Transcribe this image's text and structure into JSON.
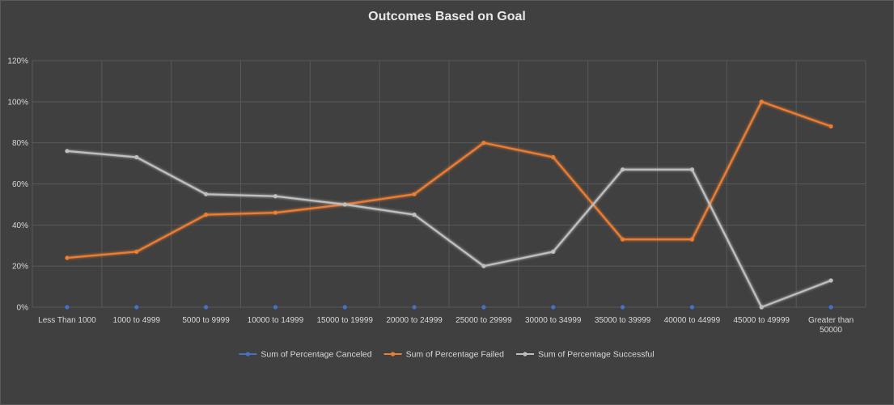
{
  "chart_data": {
    "type": "line",
    "title": "Outcomes Based on Goal",
    "xlabel": "",
    "ylabel": "",
    "categories": [
      "Less Than 1000",
      "1000 to 4999",
      "5000 to 9999",
      "10000 to 14999",
      "15000 to 19999",
      "20000 to 24999",
      "25000 to 29999",
      "30000 to 34999",
      "35000 to 39999",
      "40000 to 44999",
      "45000 to 49999",
      "Greater than 50000"
    ],
    "ylim": [
      0,
      120
    ],
    "yticks": [
      "0%",
      "20%",
      "40%",
      "60%",
      "80%",
      "100%",
      "120%"
    ],
    "grid": true,
    "legend_position": "bottom",
    "series": [
      {
        "name": "Sum of Percentage Canceled",
        "color": "#4472c4",
        "values": [
          0,
          0,
          0,
          0,
          0,
          0,
          0,
          0,
          0,
          0,
          0,
          0
        ]
      },
      {
        "name": "Sum of Percentage Failed",
        "color": "#ed7d31",
        "values": [
          24,
          27,
          45,
          46,
          50,
          55,
          80,
          73,
          33,
          33,
          100,
          88
        ]
      },
      {
        "name": "Sum of Percentage Successful",
        "color": "#bfbfbf",
        "values": [
          76,
          73,
          55,
          54,
          50,
          45,
          20,
          27,
          67,
          67,
          0,
          13
        ]
      }
    ]
  }
}
